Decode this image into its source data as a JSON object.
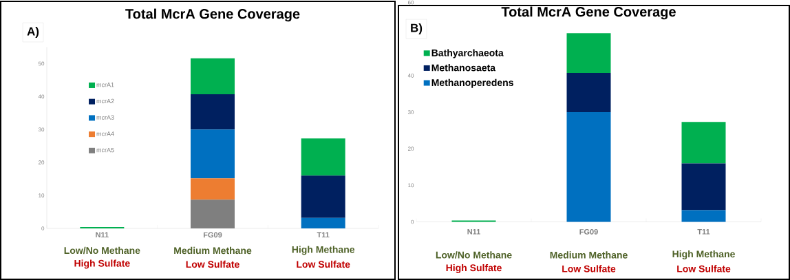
{
  "chart_data": [
    {
      "type": "bar",
      "stacked": true,
      "title": "Total McrA Gene Coverage",
      "categories": [
        "N11",
        "FG09",
        "T11"
      ],
      "series": [
        {
          "name": "mcrA5",
          "color": "#7f7f7f",
          "values": [
            0,
            8.7,
            0
          ]
        },
        {
          "name": "mcrA4",
          "color": "#ed7d31",
          "values": [
            0,
            6.5,
            0
          ]
        },
        {
          "name": "mcrA3",
          "color": "#0070c0",
          "values": [
            0,
            14.8,
            3.2
          ]
        },
        {
          "name": "mcrA2",
          "color": "#002060",
          "values": [
            0,
            10.7,
            12.8
          ]
        },
        {
          "name": "mcrA1",
          "color": "#00b050",
          "values": [
            0.4,
            10.9,
            11.3
          ]
        }
      ],
      "ylim": [
        0,
        55
      ],
      "yticks": [
        0,
        10,
        20,
        30,
        40,
        50
      ],
      "legend": "top left",
      "annotations": [
        "A)",
        "Low/No Methane",
        "Medium Methane",
        "High Methane",
        "High Sulfate",
        "Low Sulfate",
        "Low Sulfate"
      ]
    },
    {
      "type": "bar",
      "stacked": true,
      "title": "Total McrA Gene Coverage",
      "categories": [
        "N11",
        "FG09",
        "T11"
      ],
      "series": [
        {
          "name": "Methanoperedens",
          "color": "#0070c0",
          "values": [
            0,
            30,
            3.2
          ]
        },
        {
          "name": "Methanosaeta",
          "color": "#002060",
          "values": [
            0,
            10.7,
            12.8
          ]
        },
        {
          "name": "Bathyarchaeota",
          "color": "#00b050",
          "values": [
            0.4,
            10.9,
            11.3
          ]
        }
      ],
      "ylim": [
        0,
        60
      ],
      "yticks": [
        0,
        10,
        20,
        30,
        40,
        60
      ],
      "legend": "top left",
      "annotations": [
        "B)",
        "Low/No Methane",
        "Medium Methane",
        "High Methane",
        "High Sulfate",
        "Low Sulfate",
        "Low Sulfate"
      ]
    }
  ]
}
